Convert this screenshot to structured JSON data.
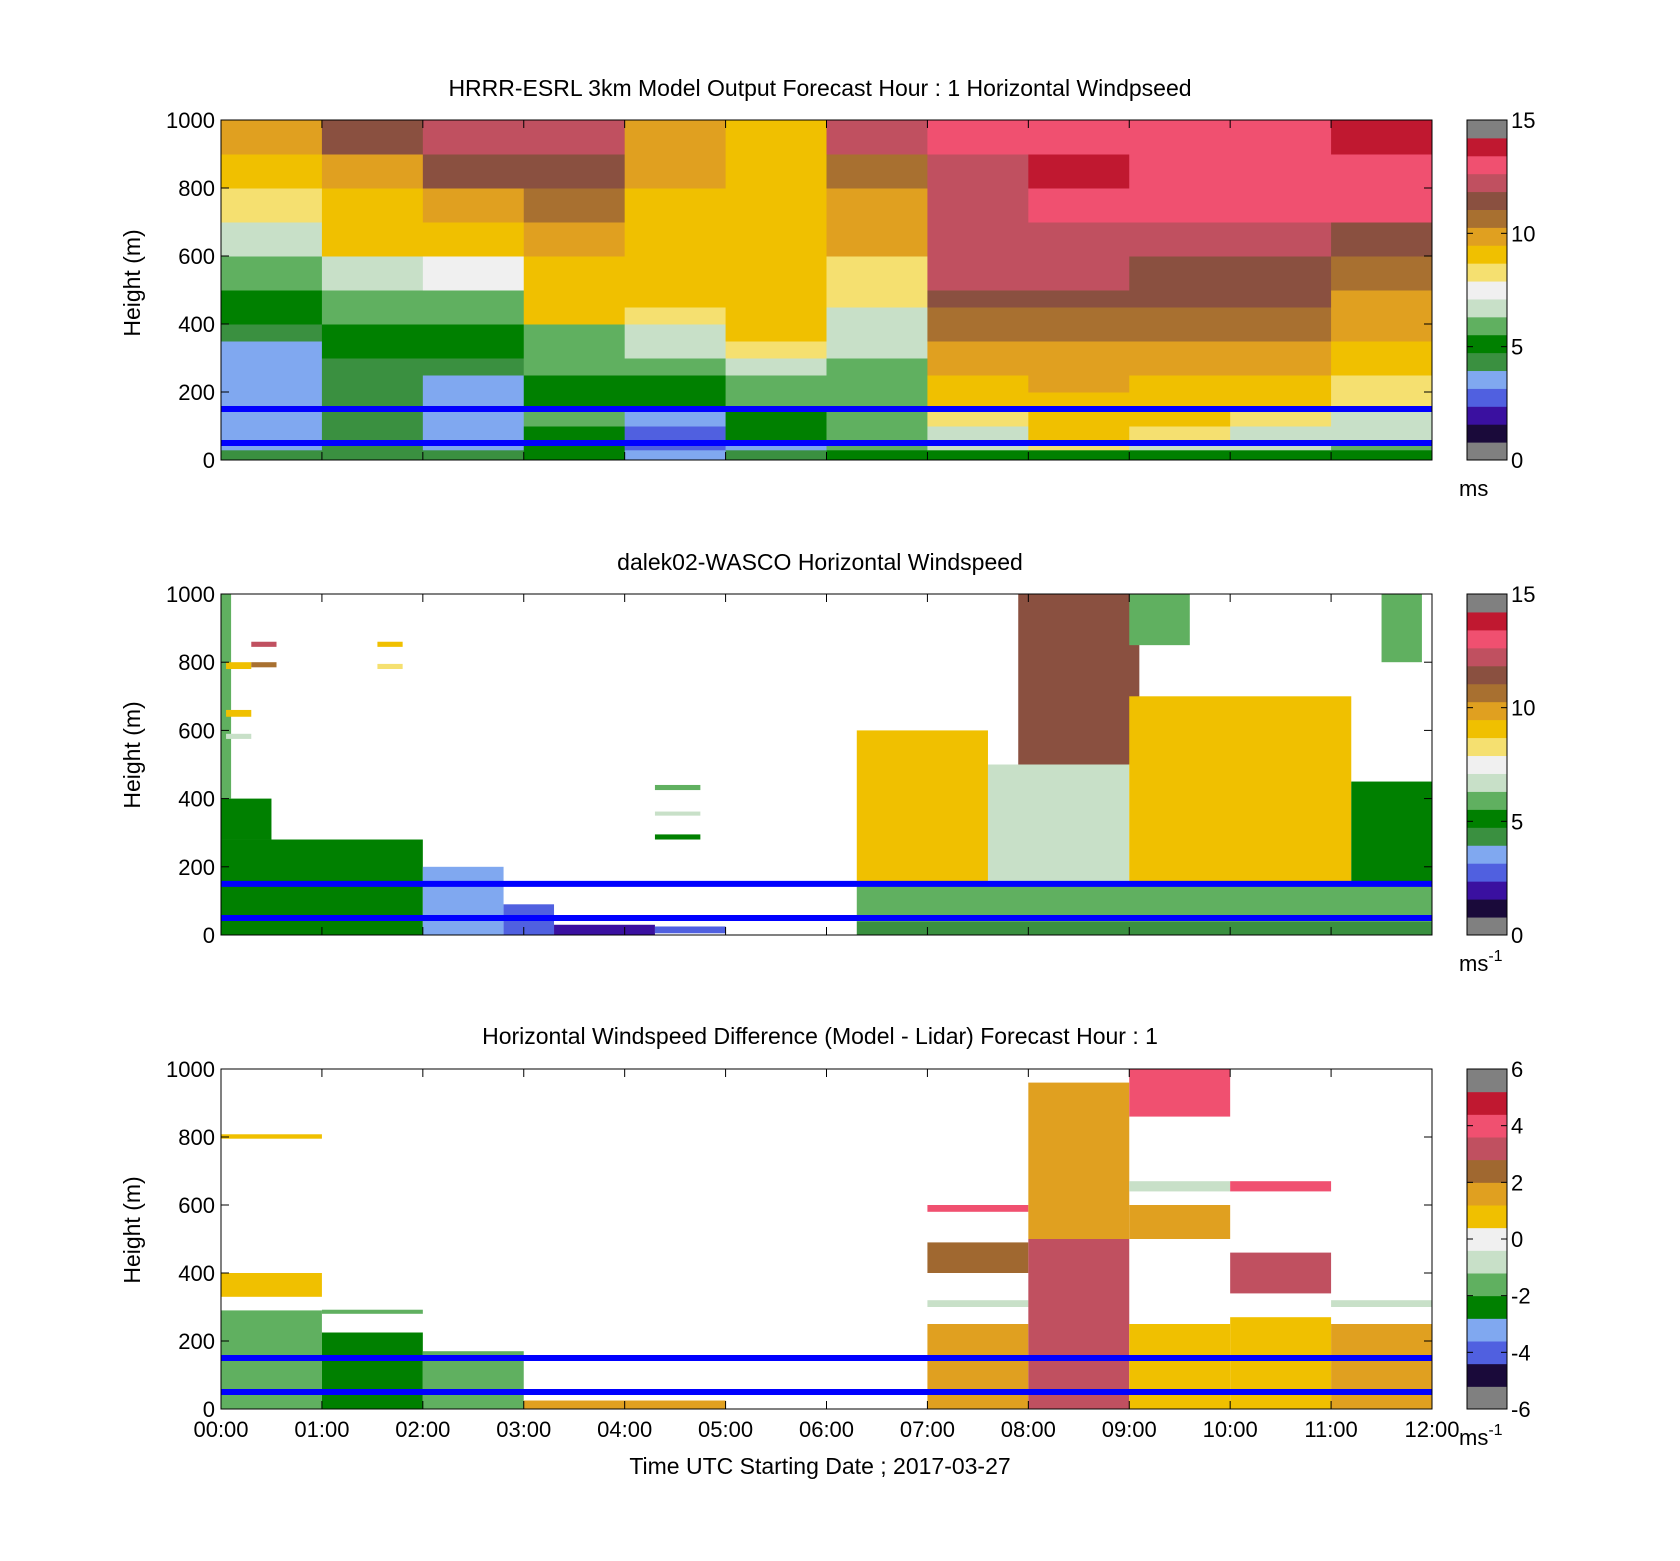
{
  "figure": {
    "xlabel": "Time UTC  Starting Date ; 2017-03-27",
    "x_ticks": [
      "00:00",
      "01:00",
      "02:00",
      "03:00",
      "04:00",
      "05:00",
      "06:00",
      "07:00",
      "08:00",
      "09:00",
      "10:00",
      "11:00",
      "12:00"
    ]
  },
  "colors": {
    "speed_scale": [
      "#808080",
      "#1a0a3a",
      "#3a10a0",
      "#5060e0",
      "#80a8f0",
      "#3a9040",
      "#008000",
      "#60b060",
      "#c8e0c8",
      "#f0f0f0",
      "#f5e070",
      "#f0c000",
      "#e0a020",
      "#a87030",
      "#8a5040",
      "#c05060",
      "#f05070",
      "#c01830",
      "#808080"
    ],
    "diff_scale": [
      "#808080",
      "#1a0a3a",
      "#5060e0",
      "#80a8f0",
      "#008000",
      "#60b060",
      "#c8e0c8",
      "#f0f0f0",
      "#f0c000",
      "#e0a020",
      "#a06830",
      "#c05060",
      "#f05070",
      "#c01830",
      "#808080"
    ],
    "guide_line": "#0000ff"
  },
  "chart_data": [
    {
      "type": "heatmap",
      "title": "HRRR-ESRL 3km Model Output   Forecast Hour : 1 Horizontal Windpseed",
      "ylabel": "Height (m)",
      "ylim": [
        0,
        1000
      ],
      "y_ticks": [
        "0",
        "200",
        "400",
        "600",
        "800",
        "1000"
      ],
      "colorbar": {
        "range": [
          0,
          15
        ],
        "ticks": [
          "0",
          "5",
          "10",
          "15"
        ],
        "unit": "ms"
      },
      "guide_lines_m": [
        150,
        50
      ],
      "x_hours": [
        0,
        1,
        2,
        3,
        4,
        5,
        6,
        7,
        8,
        9,
        10,
        11
      ],
      "rows": [
        {
          "y0": 0,
          "y1": 30,
          "values": [
            4,
            4,
            4,
            5,
            3,
            4,
            5,
            5,
            5,
            5,
            5,
            5
          ]
        },
        {
          "y0": 30,
          "y1": 60,
          "values": [
            3.5,
            4,
            3.5,
            5,
            2.5,
            3.5,
            6,
            7,
            8,
            7,
            7,
            6
          ]
        },
        {
          "y0": 60,
          "y1": 100,
          "values": [
            3.5,
            4,
            3.5,
            5,
            2.5,
            5,
            6,
            7,
            9,
            8,
            7,
            7
          ]
        },
        {
          "y0": 100,
          "y1": 150,
          "values": [
            3.5,
            4,
            3.5,
            6,
            3,
            5,
            6,
            8,
            9,
            9,
            8,
            7
          ]
        },
        {
          "y0": 150,
          "y1": 200,
          "values": [
            3.5,
            4,
            3,
            5,
            5,
            6,
            6,
            9,
            9,
            9,
            9,
            8
          ]
        },
        {
          "y0": 200,
          "y1": 250,
          "values": [
            3.5,
            4,
            3,
            5,
            5,
            6,
            6,
            9,
            10,
            9,
            9,
            8
          ]
        },
        {
          "y0": 250,
          "y1": 300,
          "values": [
            3.5,
            4,
            4,
            5.5,
            6,
            6.5,
            6,
            10,
            10,
            10,
            10,
            9
          ]
        },
        {
          "y0": 300,
          "y1": 350,
          "values": [
            3.5,
            5,
            5,
            6,
            7,
            8,
            6.5,
            10,
            10,
            10,
            10,
            9
          ]
        },
        {
          "y0": 350,
          "y1": 400,
          "values": [
            4,
            5,
            5,
            6,
            7,
            9,
            7,
            11,
            11,
            11,
            11,
            10
          ]
        },
        {
          "y0": 400,
          "y1": 450,
          "values": [
            5,
            5.5,
            5.5,
            9,
            8,
            9,
            7,
            11,
            11,
            11,
            11,
            10
          ]
        },
        {
          "y0": 450,
          "y1": 500,
          "values": [
            5,
            6,
            6,
            9,
            9,
            9,
            8,
            12,
            12,
            12,
            12,
            10
          ]
        },
        {
          "y0": 500,
          "y1": 550,
          "values": [
            5.5,
            7,
            7.5,
            9,
            9,
            9,
            8.5,
            12.5,
            12.5,
            12,
            12,
            11
          ]
        },
        {
          "y0": 550,
          "y1": 600,
          "values": [
            5.5,
            7,
            7.5,
            9,
            9,
            9,
            8.5,
            12.5,
            12.5,
            12,
            12,
            11
          ]
        },
        {
          "y0": 600,
          "y1": 700,
          "values": [
            6.5,
            9,
            9,
            10.5,
            9.5,
            9.5,
            10,
            13,
            13,
            13,
            13,
            12
          ]
        },
        {
          "y0": 700,
          "y1": 800,
          "values": [
            8.5,
            9.5,
            10.5,
            11,
            9.5,
            9.5,
            10.5,
            13,
            14,
            13.5,
            13.5,
            13.5
          ]
        },
        {
          "y0": 800,
          "y1": 900,
          "values": [
            9,
            10.5,
            11.5,
            11.5,
            10,
            9.5,
            11,
            13,
            14.5,
            14,
            13.5,
            14
          ]
        },
        {
          "y0": 900,
          "y1": 1000,
          "values": [
            10,
            11.5,
            12.5,
            12.5,
            10.5,
            9.5,
            12.5,
            14,
            14,
            14,
            14,
            14.5
          ]
        }
      ]
    },
    {
      "type": "heatmap",
      "title": "dalek02-WASCO  Horizontal Windspeed",
      "ylabel": "Height (m)",
      "ylim": [
        0,
        1000
      ],
      "y_ticks": [
        "0",
        "200",
        "400",
        "600",
        "800",
        "1000"
      ],
      "colorbar": {
        "range": [
          0,
          15
        ],
        "ticks": [
          "0",
          "5",
          "10",
          "15"
        ],
        "unit": "ms",
        "unit_sup": "-1"
      },
      "guide_lines_m": [
        150,
        50
      ],
      "segments": [
        {
          "t0": 0.0,
          "t1": 2.0,
          "y0": 0,
          "y1": 280,
          "value": 5
        },
        {
          "t0": 0.0,
          "t1": 0.5,
          "y0": 280,
          "y1": 400,
          "value": 4.5
        },
        {
          "t0": 0.0,
          "t1": 0.1,
          "y0": 400,
          "y1": 1000,
          "value": 6
        },
        {
          "t0": 0.05,
          "t1": 0.3,
          "y0": 780,
          "y1": 800,
          "value": 9
        },
        {
          "t0": 0.05,
          "t1": 0.3,
          "y0": 640,
          "y1": 660,
          "value": 9
        },
        {
          "t0": 0.05,
          "t1": 0.3,
          "y0": 575,
          "y1": 590,
          "value": 6.5
        },
        {
          "t0": 0.3,
          "t1": 0.55,
          "y0": 845,
          "y1": 860,
          "value": 13
        },
        {
          "t0": 0.3,
          "t1": 0.55,
          "y0": 785,
          "y1": 800,
          "value": 11
        },
        {
          "t0": 1.55,
          "t1": 1.8,
          "y0": 845,
          "y1": 860,
          "value": 9
        },
        {
          "t0": 1.55,
          "t1": 1.8,
          "y0": 780,
          "y1": 795,
          "value": 8
        },
        {
          "t0": 2.0,
          "t1": 2.8,
          "y0": 0,
          "y1": 200,
          "value": 3.5
        },
        {
          "t0": 2.8,
          "t1": 3.3,
          "y0": 0,
          "y1": 90,
          "value": 2.5
        },
        {
          "t0": 3.3,
          "t1": 4.3,
          "y0": 0,
          "y1": 30,
          "value": 1.5
        },
        {
          "t0": 4.3,
          "t1": 5.0,
          "y0": 5,
          "y1": 25,
          "value": 2
        },
        {
          "t0": 4.3,
          "t1": 4.75,
          "y0": 425,
          "y1": 440,
          "value": 6
        },
        {
          "t0": 4.3,
          "t1": 4.75,
          "y0": 350,
          "y1": 362,
          "value": 7
        },
        {
          "t0": 4.3,
          "t1": 4.75,
          "y0": 280,
          "y1": 295,
          "value": 5
        },
        {
          "t0": 6.3,
          "t1": 12.0,
          "y0": 0,
          "y1": 40,
          "value": 4
        },
        {
          "t0": 6.3,
          "t1": 12.0,
          "y0": 40,
          "y1": 150,
          "value": 5.5
        },
        {
          "t0": 6.3,
          "t1": 7.6,
          "y0": 150,
          "y1": 600,
          "value": 9
        },
        {
          "t0": 7.6,
          "t1": 9.0,
          "y0": 150,
          "y1": 500,
          "value": 7
        },
        {
          "t0": 7.9,
          "t1": 9.1,
          "y0": 500,
          "y1": 1000,
          "value": 12
        },
        {
          "t0": 9.0,
          "t1": 11.2,
          "y0": 150,
          "y1": 700,
          "value": 9.5
        },
        {
          "t0": 9.0,
          "t1": 9.6,
          "y0": 850,
          "y1": 1000,
          "value": 5.5
        },
        {
          "t0": 11.2,
          "t1": 12.0,
          "y0": 150,
          "y1": 450,
          "value": 5
        },
        {
          "t0": 11.5,
          "t1": 11.9,
          "y0": 800,
          "y1": 1000,
          "value": 6
        }
      ]
    },
    {
      "type": "heatmap",
      "title": "Horizontal Windspeed Difference (Model - Lidar) Forecast Hour : 1",
      "ylabel": "Height (m)",
      "ylim": [
        0,
        1000
      ],
      "y_ticks": [
        "0",
        "200",
        "400",
        "600",
        "800",
        "1000"
      ],
      "colorbar": {
        "range": [
          -6,
          6
        ],
        "ticks": [
          "-6",
          "-4",
          "-2",
          "0",
          "2",
          "4",
          "6"
        ],
        "unit": "ms",
        "unit_sup": "-1"
      },
      "guide_lines_m": [
        150,
        50
      ],
      "segments": [
        {
          "t0": 0,
          "t1": 1,
          "y0": 0,
          "y1": 290,
          "value": -2.2
        },
        {
          "t0": 0,
          "t1": 1,
          "y0": 330,
          "y1": 400,
          "value": 0.5
        },
        {
          "t0": 0,
          "t1": 1,
          "y0": 795,
          "y1": 808,
          "value": 1
        },
        {
          "t0": 1,
          "t1": 2,
          "y0": 0,
          "y1": 225,
          "value": -2.5
        },
        {
          "t0": 1,
          "t1": 2,
          "y0": 280,
          "y1": 292,
          "value": -1.5
        },
        {
          "t0": 2,
          "t1": 3,
          "y0": 0,
          "y1": 170,
          "value": -1.5
        },
        {
          "t0": 3,
          "t1": 5,
          "y0": 0,
          "y1": 25,
          "value": 1.5
        },
        {
          "t0": 7,
          "t1": 8,
          "y0": 0,
          "y1": 250,
          "value": 1.5
        },
        {
          "t0": 7,
          "t1": 8,
          "y0": 300,
          "y1": 320,
          "value": -0.5
        },
        {
          "t0": 7,
          "t1": 8,
          "y0": 400,
          "y1": 490,
          "value": 3
        },
        {
          "t0": 7,
          "t1": 8,
          "y0": 580,
          "y1": 600,
          "value": 4.5
        },
        {
          "t0": 8,
          "t1": 9,
          "y0": 0,
          "y1": 500,
          "value": 3.5
        },
        {
          "t0": 8,
          "t1": 9,
          "y0": 500,
          "y1": 960,
          "value": 1.5
        },
        {
          "t0": 9,
          "t1": 10,
          "y0": 0,
          "y1": 250,
          "value": 1
        },
        {
          "t0": 9,
          "t1": 10,
          "y0": 500,
          "y1": 600,
          "value": 1.5
        },
        {
          "t0": 9,
          "t1": 10,
          "y0": 640,
          "y1": 670,
          "value": -1
        },
        {
          "t0": 9,
          "t1": 10,
          "y0": 860,
          "y1": 1000,
          "value": 5
        },
        {
          "t0": 10,
          "t1": 11,
          "y0": 0,
          "y1": 270,
          "value": 1
        },
        {
          "t0": 10,
          "t1": 11,
          "y0": 340,
          "y1": 460,
          "value": 4
        },
        {
          "t0": 10,
          "t1": 11,
          "y0": 640,
          "y1": 670,
          "value": 5
        },
        {
          "t0": 11,
          "t1": 12,
          "y0": 0,
          "y1": 250,
          "value": 2
        },
        {
          "t0": 11,
          "t1": 12,
          "y0": 300,
          "y1": 320,
          "value": -1
        }
      ]
    }
  ]
}
